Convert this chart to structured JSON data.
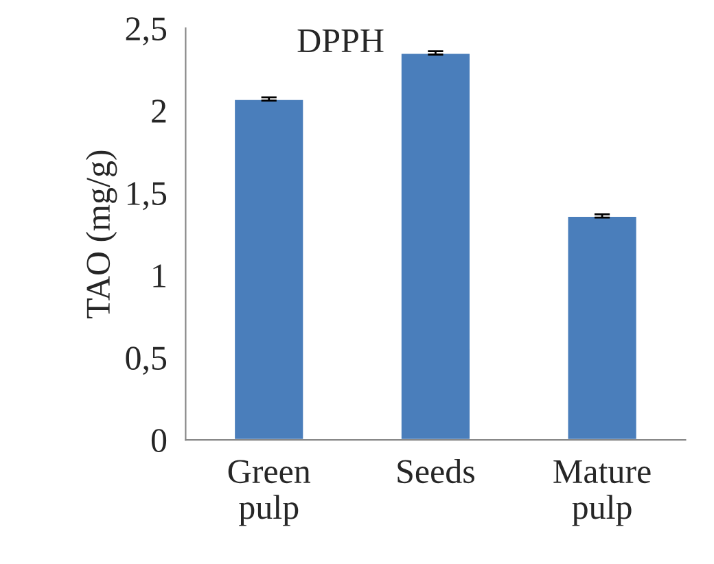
{
  "chart_data": {
    "type": "bar",
    "title": "DPPH",
    "ylabel": "TAO (mg/g)",
    "categories": [
      "Green\npulp",
      "Seeds",
      "Mature\npulp"
    ],
    "values": [
      2.07,
      2.35,
      1.36
    ],
    "errors": [
      0.01,
      0.01,
      0.01
    ],
    "color": "#4a7ebb",
    "ylim": [
      0,
      2.5
    ],
    "yticks": [
      0,
      {
        "value": 0.5,
        "label": "0,5"
      },
      1,
      {
        "value": 1.5,
        "label": "1,5"
      },
      2,
      {
        "value": 2.5,
        "label": "2,5"
      }
    ],
    "grid": false,
    "legend": false
  }
}
